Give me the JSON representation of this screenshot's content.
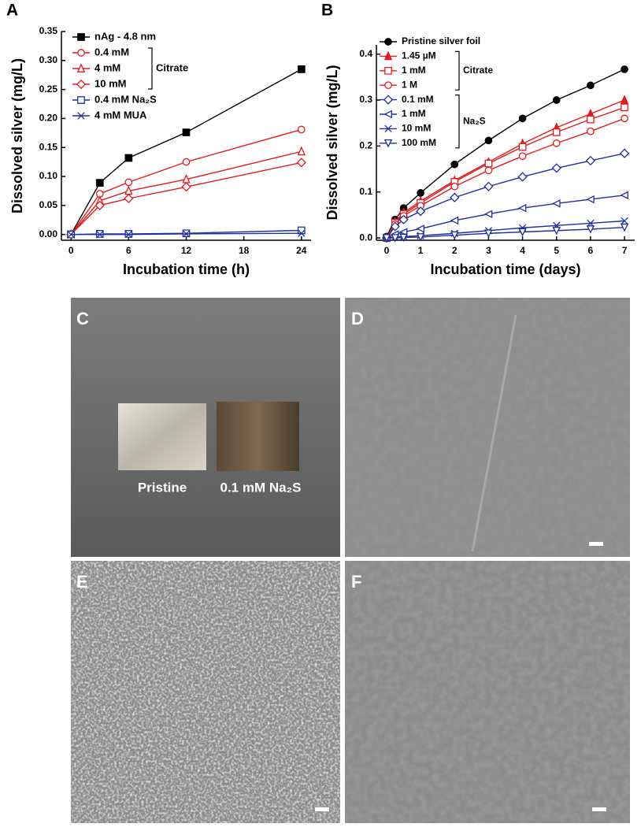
{
  "chart_data": [
    {
      "type": "line",
      "panel_label": "A",
      "x_label": "Incubation time (h)",
      "y_label": "Dissolved silver (mg/L)",
      "x": [
        0,
        3,
        6,
        12,
        24
      ],
      "xlim": [
        -1,
        25
      ],
      "xticks": [
        0,
        6,
        12,
        18,
        24
      ],
      "ylim": [
        -0.01,
        0.35
      ],
      "yticks": [
        {
          "value": 0,
          "label": "0.00"
        },
        {
          "value": 0.05,
          "label": "0.05"
        },
        {
          "value": 0.1,
          "label": "0.10"
        },
        {
          "value": 0.15,
          "label": "0.15"
        },
        {
          "value": 0.2,
          "label": "0.20"
        },
        {
          "value": 0.25,
          "label": "0.25"
        },
        {
          "value": 0.3,
          "label": "0.30"
        },
        {
          "value": 0.35,
          "label": "0.35"
        }
      ],
      "series": [
        {
          "name": "nAg - 4.8 nm",
          "color": "#000000",
          "marker": "square-filled",
          "values": [
            0,
            0.089,
            0.132,
            0.176,
            0.285
          ]
        },
        {
          "name": "0.4 mM",
          "color": "#e41a1c",
          "marker": "circle",
          "values": [
            0,
            0.07,
            0.09,
            0.125,
            0.181
          ]
        },
        {
          "name": "4 mM",
          "color": "#e41a1c",
          "marker": "triangle",
          "values": [
            0,
            0.058,
            0.075,
            0.095,
            0.143
          ]
        },
        {
          "name": "10 mM",
          "color": "#e41a1c",
          "marker": "diamond",
          "values": [
            0,
            0.05,
            0.062,
            0.082,
            0.124
          ]
        },
        {
          "name": "0.4 mM Na₂S",
          "color": "#1f2f9f",
          "marker": "square",
          "values": [
            0,
            0.001,
            0.001,
            0.002,
            0.007
          ]
        },
        {
          "name": "4 mM MUA",
          "color": "#1f2f9f",
          "marker": "x",
          "values": [
            0,
            0,
            0,
            0.001,
            0.002
          ]
        }
      ],
      "legend_groups": [
        {
          "label": "Citrate",
          "series": [
            1,
            2,
            3
          ]
        }
      ]
    },
    {
      "type": "line",
      "panel_label": "B",
      "x_label": "Incubation time (days)",
      "y_label": "Dissolved silver (mg/L)",
      "x": [
        0,
        0.25,
        0.5,
        1,
        2,
        3,
        4,
        5,
        6,
        7
      ],
      "xlim": [
        -0.3,
        7.3
      ],
      "xticks": [
        0,
        1,
        2,
        3,
        4,
        5,
        6,
        7
      ],
      "ylim": [
        -0.005,
        0.42
      ],
      "yticks": [
        {
          "value": 0,
          "label": "0.0"
        },
        0.1,
        0.2,
        0.3,
        0.4
      ],
      "series": [
        {
          "name": "Pristine silver foil",
          "color": "#000000",
          "marker": "circle-filled",
          "values": [
            0.003,
            0.04,
            0.065,
            0.098,
            0.16,
            0.212,
            0.26,
            0.3,
            0.332,
            0.367
          ]
        },
        {
          "name": "1.45 µM",
          "color": "#e41a1c",
          "marker": "triangle-filled",
          "values": [
            0,
            0.035,
            0.055,
            0.08,
            0.125,
            0.165,
            0.205,
            0.24,
            0.27,
            0.3
          ]
        },
        {
          "name": "1 mM",
          "color": "#e41a1c",
          "marker": "square",
          "values": [
            0,
            0.033,
            0.052,
            0.076,
            0.122,
            0.162,
            0.198,
            0.23,
            0.258,
            0.284
          ]
        },
        {
          "name": "1 M",
          "color": "#e41a1c",
          "marker": "circle",
          "values": [
            0,
            0.03,
            0.048,
            0.07,
            0.112,
            0.147,
            0.178,
            0.206,
            0.232,
            0.26
          ]
        },
        {
          "name": "0.1 mM",
          "color": "#1f2f9f",
          "marker": "diamond",
          "values": [
            0,
            0.025,
            0.04,
            0.058,
            0.088,
            0.112,
            0.133,
            0.152,
            0.168,
            0.184
          ]
        },
        {
          "name": "1 mM",
          "color": "#1f2f9f",
          "marker": "triangle-left",
          "values": [
            0,
            0.008,
            0.013,
            0.02,
            0.038,
            0.052,
            0.065,
            0.075,
            0.084,
            0.093
          ]
        },
        {
          "name": "10 mM",
          "color": "#1f2f9f",
          "marker": "x",
          "values": [
            0,
            0.002,
            0.003,
            0.005,
            0.01,
            0.016,
            0.022,
            0.027,
            0.032,
            0.037
          ]
        },
        {
          "name": "100 mM",
          "color": "#1f2f9f",
          "marker": "triangle-down",
          "values": [
            0,
            0,
            0.001,
            0.002,
            0.006,
            0.01,
            0.013,
            0.016,
            0.019,
            0.023
          ]
        }
      ],
      "legend_groups": [
        {
          "label": "Citrate",
          "series": [
            1,
            2,
            3
          ]
        },
        {
          "label": "Na₂S",
          "series": [
            4,
            5,
            6,
            7
          ]
        }
      ]
    }
  ],
  "photos": [
    {
      "panel_label": "C",
      "captions": [
        "Pristine",
        "0.1 mM Na₂S"
      ]
    },
    {
      "panel_label": "D"
    },
    {
      "panel_label": "E"
    },
    {
      "panel_label": "F"
    }
  ]
}
